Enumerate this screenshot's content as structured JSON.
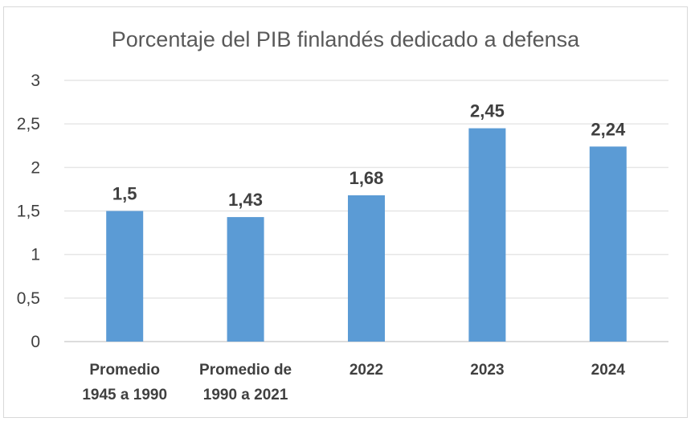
{
  "chart_data": {
    "type": "bar",
    "title": "Porcentaje del PIB finlandés dedicado a defensa",
    "categories": [
      [
        "Promedio",
        "1945 a 1990"
      ],
      [
        "Promedio de",
        "1990 a 2021"
      ],
      [
        "2022"
      ],
      [
        "2023"
      ],
      [
        "2024"
      ]
    ],
    "values": [
      1.5,
      1.43,
      1.68,
      2.45,
      2.24
    ],
    "value_labels": [
      "1,5",
      "1,43",
      "1,68",
      "2,45",
      "2,24"
    ],
    "yticks": [
      0,
      0.5,
      1,
      1.5,
      2,
      2.5,
      3
    ],
    "ytick_labels": [
      "0",
      "0,5",
      "1",
      "1,5",
      "2",
      "2,5",
      "3"
    ],
    "ylim": [
      0,
      3
    ],
    "xlabel": "",
    "ylabel": "",
    "grid": true,
    "bar_color": "#5b9bd5"
  }
}
